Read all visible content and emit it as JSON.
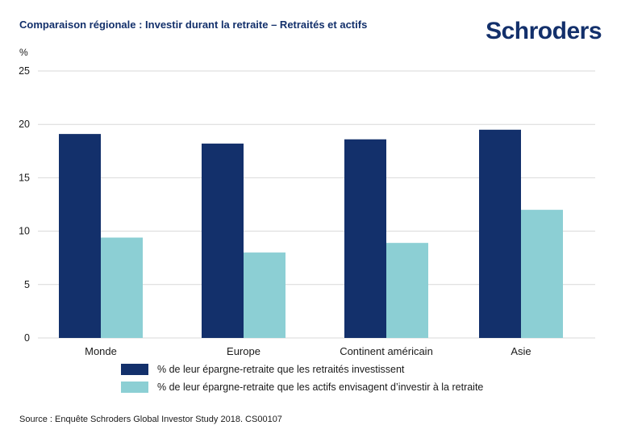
{
  "title": "Comparaison régionale : Investir durant la retraite – Retraités et actifs",
  "logo_text": "Schroders",
  "unit_label": "%",
  "source": "Source : Enquête Schroders Global Investor Study 2018. CS00107",
  "colors": {
    "series_retired": "#13306b",
    "series_active": "#8ccfd4",
    "grid": "#d9d9d9",
    "brand": "#13306b"
  },
  "chart_data": {
    "type": "bar",
    "title": "Comparaison régionale : Investir durant la retraite – Retraités et actifs",
    "ylabel": "%",
    "ylim": [
      0,
      25
    ],
    "yticks": [
      0,
      5,
      10,
      15,
      20,
      25
    ],
    "categories": [
      "Monde",
      "Europe",
      "Continent américain",
      "Asie"
    ],
    "series": [
      {
        "name": "% de leur épargne-retraite que les retraités investissent",
        "values": [
          19.1,
          18.2,
          18.6,
          19.5
        ]
      },
      {
        "name": "% de leur épargne-retraite que les actifs envisagent d’investir à la retraite",
        "values": [
          9.4,
          8.0,
          8.9,
          12.0
        ]
      }
    ],
    "grid": true,
    "legend_position": "bottom"
  }
}
